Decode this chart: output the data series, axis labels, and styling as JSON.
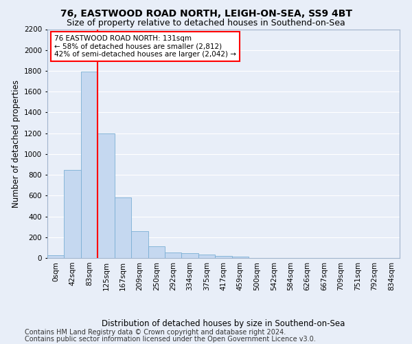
{
  "title1": "76, EASTWOOD ROAD NORTH, LEIGH-ON-SEA, SS9 4BT",
  "title2": "Size of property relative to detached houses in Southend-on-Sea",
  "xlabel": "Distribution of detached houses by size in Southend-on-Sea",
  "ylabel": "Number of detached properties",
  "bin_labels": [
    "0sqm",
    "42sqm",
    "83sqm",
    "125sqm",
    "167sqm",
    "209sqm",
    "250sqm",
    "292sqm",
    "334sqm",
    "375sqm",
    "417sqm",
    "459sqm",
    "500sqm",
    "542sqm",
    "584sqm",
    "626sqm",
    "667sqm",
    "709sqm",
    "751sqm",
    "792sqm",
    "834sqm"
  ],
  "bar_values": [
    25,
    845,
    1790,
    1200,
    585,
    260,
    115,
    50,
    45,
    35,
    20,
    10,
    0,
    0,
    0,
    0,
    0,
    0,
    0,
    0,
    0
  ],
  "bar_color": "#c5d8f0",
  "bar_edge_color": "#7aafd4",
  "vline_x": 2.5,
  "vline_color": "red",
  "annotation_text": "76 EASTWOOD ROAD NORTH: 131sqm\n← 58% of detached houses are smaller (2,812)\n42% of semi-detached houses are larger (2,042) →",
  "annotation_box_color": "white",
  "annotation_box_edge_color": "red",
  "ylim": [
    0,
    2200
  ],
  "yticks": [
    0,
    200,
    400,
    600,
    800,
    1000,
    1200,
    1400,
    1600,
    1800,
    2000,
    2200
  ],
  "footnote1": "Contains HM Land Registry data © Crown copyright and database right 2024.",
  "footnote2": "Contains public sector information licensed under the Open Government Licence v3.0.",
  "bg_color": "#e8eef8",
  "grid_color": "#ffffff",
  "title1_fontsize": 10,
  "title2_fontsize": 9,
  "xlabel_fontsize": 8.5,
  "ylabel_fontsize": 8.5,
  "tick_fontsize": 7.5,
  "footnote_fontsize": 7,
  "annot_fontsize": 7.5
}
